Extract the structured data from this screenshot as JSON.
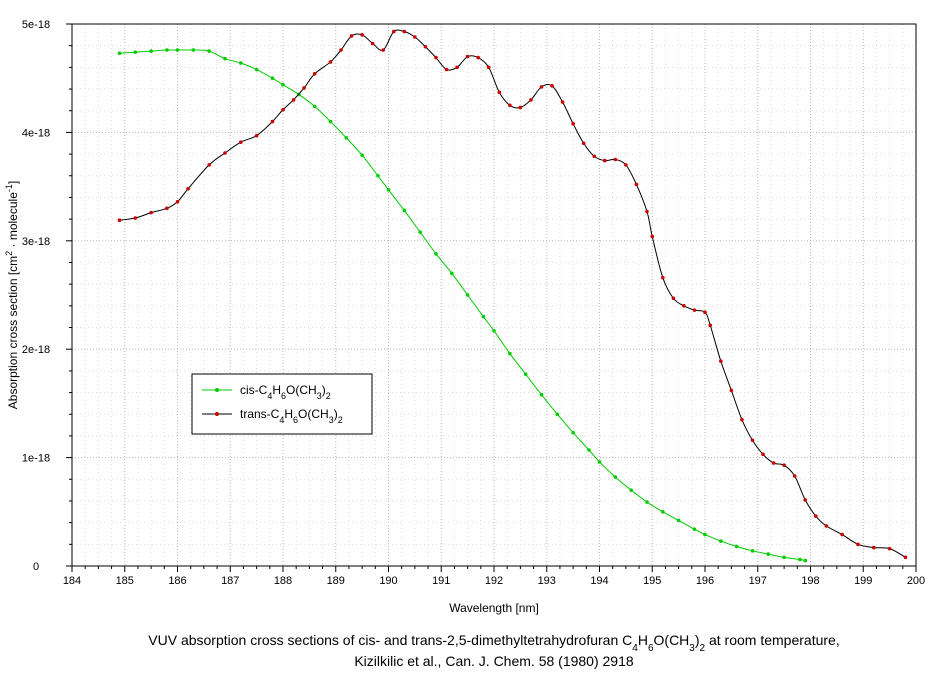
{
  "caption": {
    "line1_pre": "VUV absorption cross sections of cis- and trans-2,5-dimethyltetrahydrofuran C",
    "line1_sub1": "4",
    "line1_mid1": "H",
    "line1_sub2": "6",
    "line1_mid2": "O(CH",
    "line1_sub3": "3",
    "line1_mid3": ")",
    "line1_sub4": "2",
    "line1_post": " at room temperature,",
    "line2": "Kizilkilic et al., Can. J. Chem. 58 (1980) 2918"
  },
  "chart_data": {
    "type": "line",
    "xlabel": "Wavelength [nm]",
    "ylabel": {
      "pre": "Absorption cross section [cm",
      "sup1": "2",
      "mid": " · molecule",
      "sup2": "-1",
      "post": "]"
    },
    "xlim": [
      184,
      200
    ],
    "ylim": [
      0,
      5e-18
    ],
    "x_ticks": [
      184,
      185,
      186,
      187,
      188,
      189,
      190,
      191,
      192,
      193,
      194,
      195,
      196,
      197,
      198,
      199,
      200
    ],
    "y_ticks": [
      {
        "value": 0,
        "label": "0"
      },
      {
        "value": 1e-18,
        "label": "1e-18"
      },
      {
        "value": 2e-18,
        "label": "2e-18"
      },
      {
        "value": 3e-18,
        "label": "3e-18"
      },
      {
        "value": 4e-18,
        "label": "4e-18"
      },
      {
        "value": 5e-18,
        "label": "5e-18"
      }
    ],
    "grid": true,
    "legend_position": "center-left",
    "series": [
      {
        "name": {
          "pre": "cis-C",
          "s1": "4",
          "m1": "H",
          "s2": "6",
          "m2": "O(CH",
          "s3": "3",
          "m3": ")",
          "s4": "2"
        },
        "color": "#00cc00",
        "x": [
          184.9,
          185.2,
          185.5,
          185.8,
          186.0,
          186.3,
          186.6,
          186.9,
          187.2,
          187.5,
          187.8,
          188.0,
          188.3,
          188.6,
          188.9,
          189.2,
          189.5,
          189.8,
          190.0,
          190.3,
          190.6,
          190.9,
          191.2,
          191.5,
          191.8,
          192.0,
          192.3,
          192.6,
          192.9,
          193.2,
          193.5,
          193.8,
          194.0,
          194.3,
          194.6,
          194.9,
          195.2,
          195.5,
          195.8,
          196.0,
          196.3,
          196.6,
          196.9,
          197.2,
          197.5,
          197.8,
          197.9
        ],
        "y": [
          4.73e-18,
          4.74e-18,
          4.75e-18,
          4.76e-18,
          4.76e-18,
          4.76e-18,
          4.75e-18,
          4.68e-18,
          4.64e-18,
          4.58e-18,
          4.5e-18,
          4.44e-18,
          4.35e-18,
          4.24e-18,
          4.1e-18,
          3.95e-18,
          3.79e-18,
          3.6e-18,
          3.47e-18,
          3.28e-18,
          3.08e-18,
          2.88e-18,
          2.7e-18,
          2.5e-18,
          2.3e-18,
          2.17e-18,
          1.96e-18,
          1.77e-18,
          1.58e-18,
          1.4e-18,
          1.23e-18,
          1.07e-18,
          9.6e-19,
          8.2e-19,
          7e-19,
          5.9e-19,
          5e-19,
          4.2e-19,
          3.4e-19,
          2.9e-19,
          2.3e-19,
          1.8e-19,
          1.4e-19,
          1.1e-19,
          8e-20,
          6e-20,
          5e-20
        ]
      },
      {
        "name": {
          "pre": "trans-C",
          "s1": "4",
          "m1": "H",
          "s2": "6",
          "m2": "O(CH",
          "s3": "3",
          "m3": ")",
          "s4": "2"
        },
        "color": "#cc0000",
        "x": [
          184.9,
          185.2,
          185.5,
          185.8,
          186.0,
          186.2,
          186.6,
          186.9,
          187.2,
          187.5,
          187.8,
          188.0,
          188.2,
          188.4,
          188.6,
          188.9,
          189.1,
          189.3,
          189.5,
          189.7,
          189.9,
          190.1,
          190.3,
          190.5,
          190.7,
          190.9,
          191.1,
          191.3,
          191.5,
          191.7,
          191.9,
          192.1,
          192.3,
          192.5,
          192.7,
          192.9,
          193.1,
          193.3,
          193.5,
          193.7,
          193.9,
          194.1,
          194.3,
          194.5,
          194.7,
          194.9,
          195.0,
          195.2,
          195.4,
          195.6,
          195.8,
          196.0,
          196.1,
          196.3,
          196.5,
          196.7,
          196.9,
          197.1,
          197.3,
          197.5,
          197.7,
          197.9,
          198.1,
          198.3,
          198.6,
          198.9,
          199.2,
          199.5,
          199.8
        ],
        "y": [
          3.19e-18,
          3.21e-18,
          3.26e-18,
          3.3e-18,
          3.36e-18,
          3.48e-18,
          3.7e-18,
          3.81e-18,
          3.91e-18,
          3.97e-18,
          4.1e-18,
          4.21e-18,
          4.3e-18,
          4.41e-18,
          4.54e-18,
          4.65e-18,
          4.76e-18,
          4.89e-18,
          4.9e-18,
          4.82e-18,
          4.76e-18,
          4.93e-18,
          4.93e-18,
          4.88e-18,
          4.79e-18,
          4.69e-18,
          4.58e-18,
          4.6e-18,
          4.7e-18,
          4.69e-18,
          4.6e-18,
          4.37e-18,
          4.25e-18,
          4.23e-18,
          4.3e-18,
          4.42e-18,
          4.43e-18,
          4.28e-18,
          4.08e-18,
          3.9e-18,
          3.78e-18,
          3.74e-18,
          3.75e-18,
          3.7e-18,
          3.52e-18,
          3.27e-18,
          3.04e-18,
          2.66e-18,
          2.47e-18,
          2.4e-18,
          2.36e-18,
          2.34e-18,
          2.22e-18,
          1.89e-18,
          1.62e-18,
          1.35e-18,
          1.16e-18,
          1.03e-18,
          9.5e-19,
          9.3e-19,
          8.3e-19,
          6.1e-19,
          4.6e-19,
          3.7e-19,
          2.9e-19,
          2e-19,
          1.7e-19,
          1.6e-19,
          8e-20
        ]
      }
    ]
  }
}
